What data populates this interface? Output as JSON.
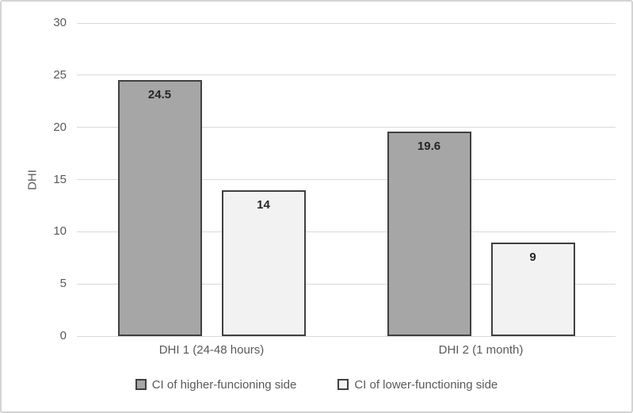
{
  "chart_data": {
    "type": "bar",
    "title": "",
    "xlabel": "",
    "ylabel": "DHI",
    "categories": [
      "DHI 1 (24-48 hours)",
      "DHI 2 (1 month)"
    ],
    "series": [
      {
        "name": "CI of higher-funcioning side",
        "values": [
          24.5,
          19.6
        ],
        "fill": "#a6a6a6",
        "border": "#404040"
      },
      {
        "name": "CI of lower-functioning side",
        "values": [
          14,
          9
        ],
        "fill": "#f2f2f2",
        "border": "#404040"
      }
    ],
    "ylim": [
      0,
      30
    ],
    "yticks": [
      0,
      5,
      10,
      15,
      20,
      25,
      30
    ],
    "grid": true,
    "legend_position": "bottom"
  },
  "colors": {
    "gridline": "#d9d9d9",
    "axis_text": "#595959",
    "value_label_text": "#262626",
    "frame_border": "#d4d4d4",
    "background": "#ffffff"
  }
}
